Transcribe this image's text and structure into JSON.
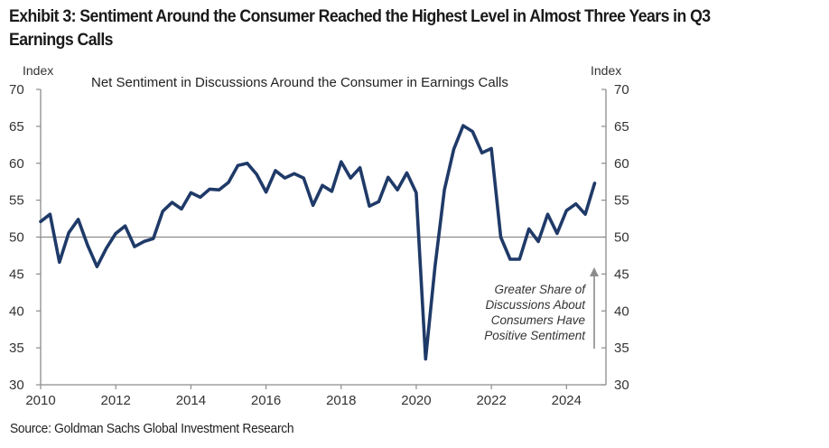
{
  "exhibit_title": "Exhibit 3: Sentiment Around the Consumer Reached the Highest Level in Almost Three Years in Q3 Earnings Calls",
  "source": "Source: Goldman Sachs Global Investment Research",
  "chart_data": {
    "type": "line",
    "title": "Net Sentiment in Discussions Around the Consumer in Earnings Calls",
    "xlabel": "",
    "ylabel": "Index",
    "ylabel_right": "Index",
    "ylim": [
      30,
      70
    ],
    "xlim": [
      2010,
      2025.2
    ],
    "yticks": [
      30,
      35,
      40,
      45,
      50,
      55,
      60,
      65,
      70
    ],
    "xticks": [
      2010,
      2012,
      2014,
      2016,
      2018,
      2020,
      2022,
      2024
    ],
    "reference_line": 50,
    "grid": false,
    "line_color": "#1f3a68",
    "annotation": {
      "lines": [
        "Greater Share of",
        "Discussions About",
        "Consumers Have",
        "Positive Sentiment"
      ],
      "arrow": "up"
    },
    "series": [
      {
        "name": "Net Sentiment",
        "frequency": "quarterly",
        "start": "2010Q1",
        "x": [
          2010.0,
          2010.25,
          2010.5,
          2010.75,
          2011.0,
          2011.25,
          2011.5,
          2011.75,
          2012.0,
          2012.25,
          2012.5,
          2012.75,
          2013.0,
          2013.25,
          2013.5,
          2013.75,
          2014.0,
          2014.25,
          2014.5,
          2014.75,
          2015.0,
          2015.25,
          2015.5,
          2015.75,
          2016.0,
          2016.25,
          2016.5,
          2016.75,
          2017.0,
          2017.25,
          2017.5,
          2017.75,
          2018.0,
          2018.25,
          2018.5,
          2018.75,
          2019.0,
          2019.25,
          2019.5,
          2019.75,
          2020.0,
          2020.25,
          2020.5,
          2020.75,
          2021.0,
          2021.25,
          2021.5,
          2021.75,
          2022.0,
          2022.25,
          2022.5,
          2022.75,
          2023.0,
          2023.25,
          2023.5,
          2023.75,
          2024.0,
          2024.25,
          2024.5,
          2024.75
        ],
        "values": [
          52.1,
          53.1,
          46.6,
          50.6,
          52.4,
          48.9,
          46.0,
          48.5,
          50.5,
          51.5,
          48.7,
          49.4,
          49.8,
          53.5,
          54.7,
          53.8,
          56.0,
          55.4,
          56.5,
          56.4,
          57.4,
          59.7,
          60.0,
          58.5,
          56.1,
          59.0,
          58.0,
          58.6,
          58.0,
          54.3,
          57.0,
          56.2,
          60.2,
          58.0,
          59.4,
          54.2,
          54.8,
          58.1,
          56.4,
          58.7,
          56.0,
          33.5,
          46.0,
          56.4,
          61.9,
          65.1,
          64.3,
          61.4,
          62.0,
          50.0,
          47.0,
          47.0,
          51.1,
          49.4,
          53.1,
          50.5,
          53.6,
          54.5,
          53.1,
          57.3
        ]
      }
    ]
  }
}
